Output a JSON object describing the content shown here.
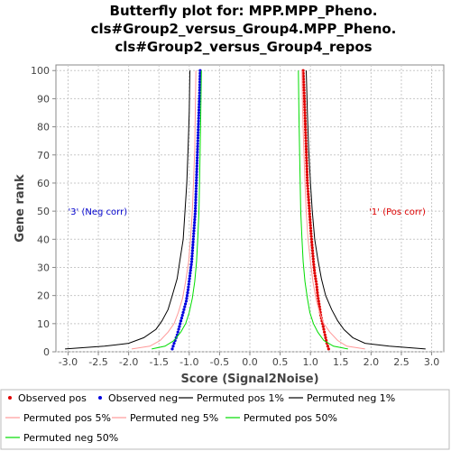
{
  "chart_data": {
    "type": "scatter",
    "title_lines": [
      "Butterfly plot for: MPP.MPP_Pheno.",
      "cls#Group2_versus_Group4.MPP_Pheno.",
      "cls#Group2_versus_Group4_repos"
    ],
    "xlabel": "Score (Signal2Noise)",
    "ylabel": "Gene rank",
    "xlim": [
      -3.2,
      3.2
    ],
    "ylim": [
      0,
      102
    ],
    "x_ticks": [
      -3.0,
      -2.5,
      -2.0,
      -1.5,
      -1.0,
      -0.5,
      0.0,
      0.5,
      1.0,
      1.5,
      2.0,
      2.5,
      3.0
    ],
    "x_tick_labels": [
      "-3.0",
      "-2.5",
      "-2.0",
      "-1.5",
      "-1.0",
      "-0.5",
      "0.0",
      "0.5",
      "1.0",
      "1.5",
      "2.0",
      "2.5",
      "3.0"
    ],
    "y_ticks": [
      0,
      10,
      20,
      30,
      40,
      50,
      60,
      70,
      80,
      90,
      100
    ],
    "y_tick_labels": [
      "0",
      "10",
      "20",
      "30",
      "40",
      "50",
      "60",
      "70",
      "80",
      "90",
      "100"
    ],
    "grid": true,
    "annotations": [
      {
        "text": "'3' (Neg corr)",
        "x": -3.0,
        "y": 50,
        "color": "#0000cc"
      },
      {
        "text": "'1' (Pos corr)",
        "x": 2.9,
        "y": 50,
        "color": "#dd0000"
      }
    ],
    "series": [
      {
        "name": "Observed pos",
        "kind": "points",
        "color": "#e00000",
        "x": [
          1.3,
          1.27,
          1.25,
          1.22,
          1.2,
          1.17,
          1.15,
          1.12,
          1.1,
          1.07,
          1.05,
          1.03,
          1.01,
          0.99,
          0.97,
          0.95,
          0.94,
          0.93,
          0.92,
          0.91,
          0.9,
          0.89,
          0.88
        ],
        "y": [
          1,
          3,
          5,
          8,
          10,
          13,
          16,
          20,
          24,
          28,
          32,
          37,
          42,
          48,
          54,
          60,
          66,
          72,
          78,
          84,
          90,
          95,
          100
        ]
      },
      {
        "name": "Observed neg",
        "kind": "points",
        "color": "#0000e0",
        "x": [
          -1.28,
          -1.25,
          -1.2,
          -1.15,
          -1.1,
          -1.05,
          -1.02,
          -0.99,
          -0.96,
          -0.94,
          -0.92,
          -0.9,
          -0.89,
          -0.88,
          -0.87,
          -0.86,
          -0.85,
          -0.84,
          -0.83,
          -0.82
        ],
        "y": [
          1,
          3,
          6,
          10,
          14,
          18,
          22,
          27,
          32,
          38,
          44,
          50,
          56,
          62,
          68,
          74,
          80,
          86,
          92,
          100
        ]
      },
      {
        "name": "Permuted pos 1%",
        "kind": "line",
        "color": "#000000",
        "x": [
          2.9,
          2.3,
          1.9,
          1.7,
          1.55,
          1.45,
          1.35,
          1.25,
          1.18,
          1.12,
          1.07,
          1.03,
          1.0,
          0.97,
          0.95,
          0.93
        ],
        "y": [
          1,
          2,
          3,
          5,
          8,
          11,
          15,
          20,
          26,
          33,
          40,
          50,
          60,
          72,
          85,
          100
        ]
      },
      {
        "name": "Permuted neg 1%",
        "kind": "line",
        "color": "#000000",
        "x": [
          -3.05,
          -2.4,
          -2.0,
          -1.75,
          -1.55,
          -1.45,
          -1.35,
          -1.28,
          -1.2,
          -1.15,
          -1.1,
          -1.07,
          -1.04,
          -1.02,
          -1.0,
          -0.99
        ],
        "y": [
          1,
          2,
          3,
          5,
          8,
          11,
          15,
          20,
          26,
          33,
          40,
          50,
          60,
          72,
          85,
          100
        ]
      },
      {
        "name": "Permuted pos 5%",
        "kind": "line",
        "color": "#ff9999",
        "x": [
          1.9,
          1.6,
          1.45,
          1.32,
          1.22,
          1.15,
          1.09,
          1.04,
          1.0,
          0.96,
          0.93,
          0.91,
          0.89,
          0.87,
          0.86
        ],
        "y": [
          1,
          2,
          4,
          7,
          10,
          14,
          19,
          25,
          32,
          40,
          50,
          60,
          72,
          85,
          100
        ]
      },
      {
        "name": "Permuted neg 5%",
        "kind": "line",
        "color": "#ff9999",
        "x": [
          -1.95,
          -1.65,
          -1.48,
          -1.35,
          -1.25,
          -1.18,
          -1.11,
          -1.06,
          -1.01,
          -0.98,
          -0.95,
          -0.93,
          -0.91,
          -0.9,
          -0.89
        ],
        "y": [
          1,
          2,
          4,
          7,
          10,
          14,
          19,
          25,
          32,
          40,
          50,
          60,
          72,
          85,
          100
        ]
      },
      {
        "name": "Permuted pos 50%",
        "kind": "line",
        "color": "#00dd00",
        "x": [
          1.62,
          1.38,
          1.22,
          1.12,
          1.05,
          0.99,
          0.95,
          0.91,
          0.88,
          0.86,
          0.84,
          0.83,
          0.82,
          0.81,
          0.8
        ],
        "y": [
          1,
          2,
          4,
          7,
          10,
          14,
          19,
          25,
          32,
          40,
          50,
          60,
          72,
          85,
          100
        ]
      },
      {
        "name": "Permuted neg 50%",
        "kind": "line",
        "color": "#00dd00",
        "x": [
          -1.62,
          -1.4,
          -1.25,
          -1.14,
          -1.06,
          -1.0,
          -0.95,
          -0.91,
          -0.88,
          -0.86,
          -0.84,
          -0.83,
          -0.82,
          -0.81,
          -0.8
        ],
        "y": [
          1,
          2,
          4,
          7,
          10,
          14,
          19,
          25,
          32,
          40,
          50,
          60,
          72,
          85,
          100
        ]
      }
    ],
    "legend": {
      "placement": "bottom",
      "entries": [
        {
          "label": "Observed pos",
          "marker": "dot",
          "color": "#e00000"
        },
        {
          "label": "Observed neg",
          "marker": "dot",
          "color": "#0000e0"
        },
        {
          "label": "Permuted pos 1%",
          "marker": "line",
          "color": "#000000"
        },
        {
          "label": "Permuted neg 1%",
          "marker": "line",
          "color": "#000000"
        },
        {
          "label": "Permuted pos 5%",
          "marker": "line",
          "color": "#ff9999"
        },
        {
          "label": "Permuted neg 5%",
          "marker": "line",
          "color": "#ff9999"
        },
        {
          "label": "Permuted pos 50%",
          "marker": "line",
          "color": "#00dd00"
        },
        {
          "label": "Permuted neg 50%",
          "marker": "line",
          "color": "#00dd00"
        }
      ]
    }
  }
}
